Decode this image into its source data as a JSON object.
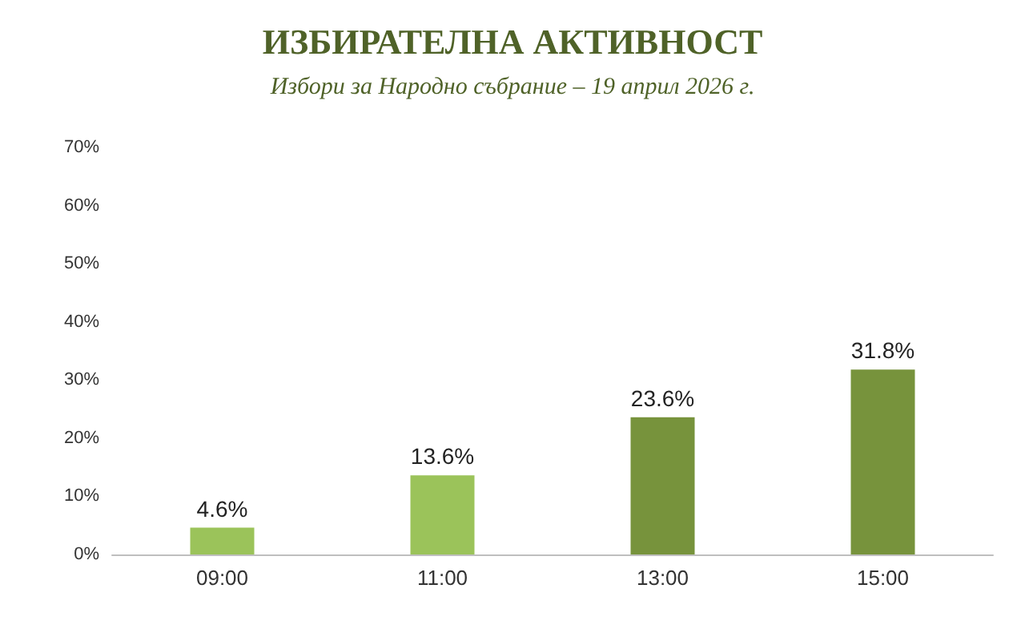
{
  "chart_data": {
    "type": "bar",
    "title": "ИЗБИРАТЕЛНА АКТИВНОСТ",
    "subtitle": "Избори за Народно събрание – 19 април 2026 г.",
    "categories": [
      "09:00",
      "11:00",
      "13:00",
      "15:00"
    ],
    "values": [
      4.6,
      13.6,
      23.6,
      31.8
    ],
    "colors": [
      "#9bc35a",
      "#9bc35a",
      "#77933c",
      "#77933c"
    ],
    "value_labels": [
      "4.6%",
      "13.6%",
      "23.6%",
      "31.8%"
    ],
    "ylim": [
      0,
      70
    ],
    "yticks": [
      {
        "value": 0,
        "label": "0%"
      },
      {
        "value": 10,
        "label": "10%"
      },
      {
        "value": 20,
        "label": "20%"
      },
      {
        "value": 30,
        "label": "30%"
      },
      {
        "value": 40,
        "label": "40%"
      },
      {
        "value": 50,
        "label": "50%"
      },
      {
        "value": 60,
        "label": "60%"
      },
      {
        "value": 70,
        "label": "70%"
      }
    ],
    "grid": false
  }
}
